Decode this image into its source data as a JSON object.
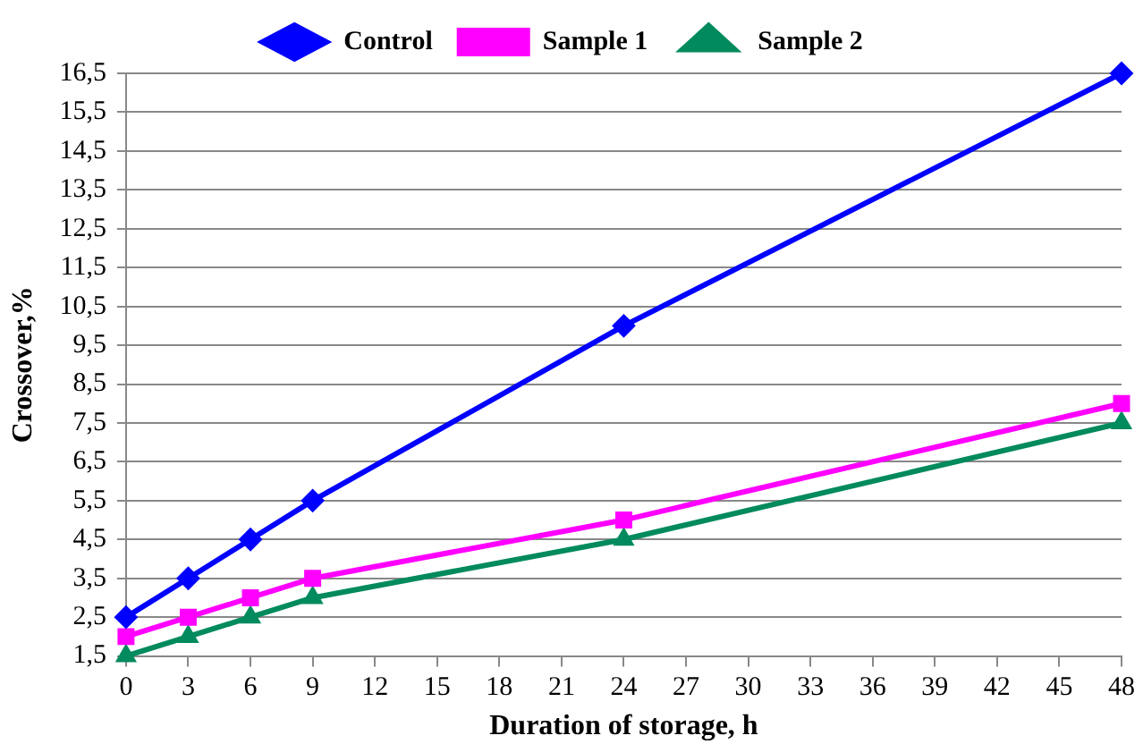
{
  "chart_data": {
    "type": "line",
    "xlabel": "Duration of storage, h",
    "ylabel": "Crossover,%",
    "x": [
      0,
      3,
      6,
      9,
      24,
      48
    ],
    "series": [
      {
        "name": "Control",
        "color": "#0000ff",
        "marker": "diamond",
        "values": [
          2.5,
          3.5,
          4.5,
          5.5,
          10,
          16.5
        ]
      },
      {
        "name": "Sample 1",
        "color": "#ff00ff",
        "marker": "square",
        "values": [
          2,
          2.5,
          3,
          3.5,
          5,
          8
        ]
      },
      {
        "name": "Sample 2",
        "color": "#008a5e",
        "marker": "triangle",
        "values": [
          1.5,
          2,
          2.5,
          3,
          4.5,
          7.5
        ]
      }
    ],
    "xlim": [
      0,
      48
    ],
    "xticks": [
      0,
      3,
      6,
      9,
      12,
      15,
      18,
      21,
      24,
      27,
      30,
      33,
      36,
      39,
      42,
      45,
      48
    ],
    "ylim": [
      1.5,
      16.5
    ],
    "yticks": [
      {
        "value": 1.5,
        "label": "1,5"
      },
      {
        "value": 2.5,
        "label": "2,5"
      },
      {
        "value": 3.5,
        "label": "3,5"
      },
      {
        "value": 4.5,
        "label": "4,5"
      },
      {
        "value": 5.5,
        "label": "5,5"
      },
      {
        "value": 6.5,
        "label": "6,5"
      },
      {
        "value": 7.5,
        "label": "7,5"
      },
      {
        "value": 8.5,
        "label": "8,5"
      },
      {
        "value": 9.5,
        "label": "9,5"
      },
      {
        "value": 10.5,
        "label": "10,5"
      },
      {
        "value": 11.5,
        "label": "11,5"
      },
      {
        "value": 12.5,
        "label": "12,5"
      },
      {
        "value": 13.5,
        "label": "13,5"
      },
      {
        "value": 14.5,
        "label": "14,5"
      },
      {
        "value": 15.5,
        "label": "15,5"
      },
      {
        "value": 16.5,
        "label": "16,5"
      }
    ],
    "grid": "y",
    "legend": "top",
    "line_style": "solid"
  }
}
